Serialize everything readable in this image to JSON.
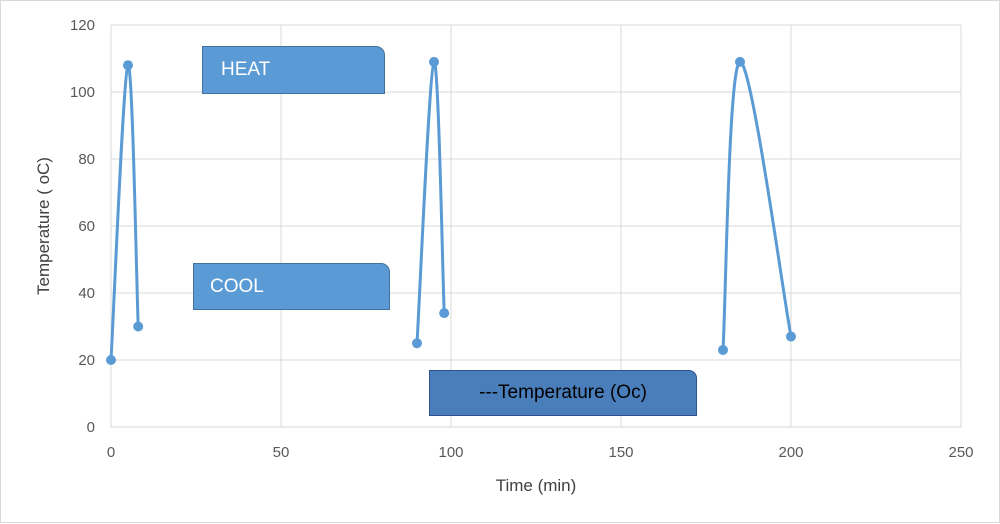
{
  "chart_data": {
    "type": "scatter",
    "xlabel": "Time (min)",
    "ylabel": "Temperature ( oC)",
    "xlim": [
      0,
      250
    ],
    "ylim": [
      0,
      120
    ],
    "x_ticks": [
      0,
      50,
      100,
      150,
      200,
      250
    ],
    "y_ticks": [
      0,
      20,
      40,
      60,
      80,
      100,
      120
    ],
    "grid": true,
    "series": [
      {
        "name": "---Temperature (Oc)",
        "color": "#5b9bd5",
        "smooth": true,
        "segments": [
          [
            [
              0,
              20
            ],
            [
              5,
              108
            ],
            [
              8,
              30
            ]
          ],
          [
            [
              90,
              25
            ],
            [
              95,
              109
            ],
            [
              98,
              34
            ]
          ],
          [
            [
              180,
              23
            ],
            [
              185,
              109
            ],
            [
              200,
              27
            ]
          ]
        ]
      }
    ],
    "annotations": [
      "HEAT",
      "COOL"
    ]
  }
}
